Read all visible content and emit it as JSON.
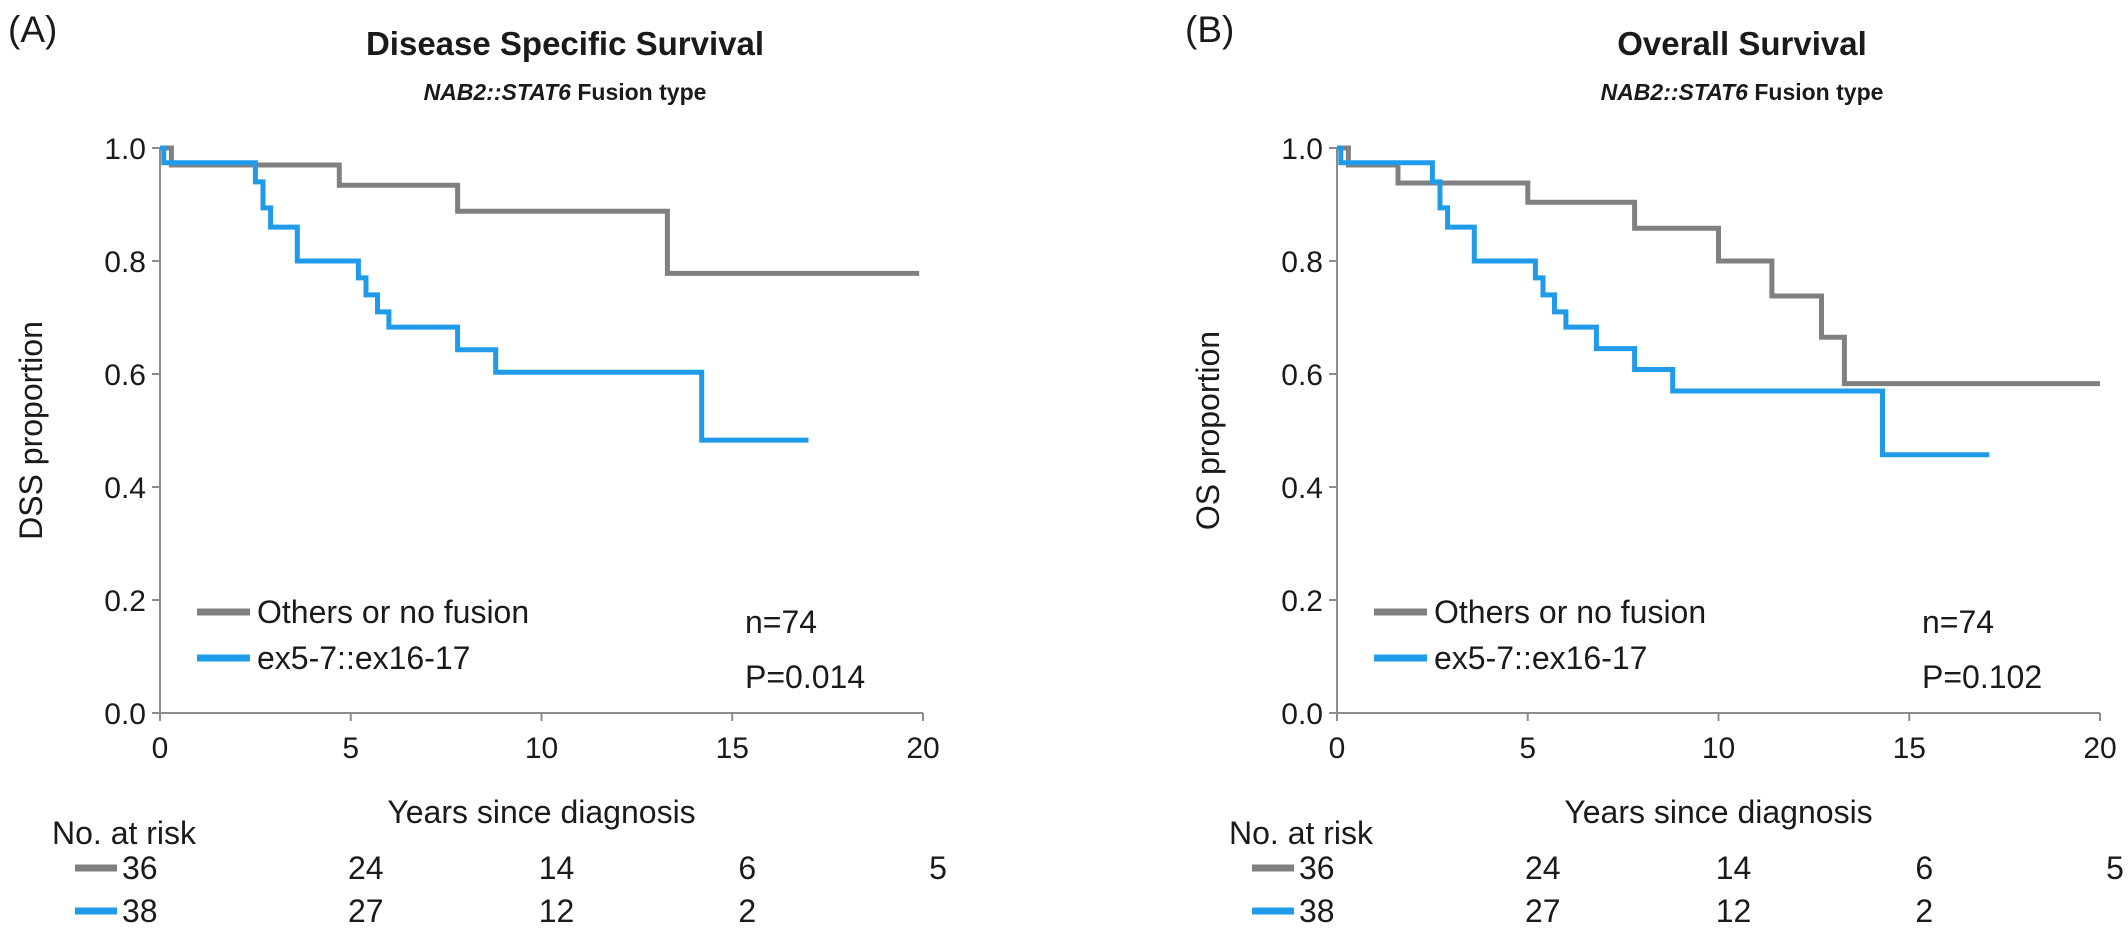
{
  "chart_data": [
    {
      "panel_label": "(A)",
      "type": "line",
      "step": true,
      "title": "Disease Specific Survival",
      "subtitle_italic": "NAB2::STAT6",
      "subtitle_rest": "Fusion type",
      "xlabel": "Years since diagnosis",
      "ylabel": "DSS proportion",
      "xlim": [
        0,
        20
      ],
      "ylim": [
        0,
        1
      ],
      "xticks": [
        "0",
        "5",
        "10",
        "15",
        "20"
      ],
      "yticks": [
        "0.0",
        "0.2",
        "0.4",
        "0.6",
        "0.8",
        "1.0"
      ],
      "grid": false,
      "legend_position": "bottom-left",
      "annotations": [
        "n=74",
        "P=0.014"
      ],
      "risk_title": "No. at risk",
      "series": [
        {
          "name": "Others or no fusion",
          "color": "#808080",
          "x": [
            0,
            0.3,
            0.3,
            4.7,
            4.7,
            7.8,
            7.8,
            13.3,
            13.3,
            19.9
          ],
          "y": [
            1.0,
            1.0,
            0.97,
            0.97,
            0.934,
            0.934,
            0.888,
            0.888,
            0.778,
            0.778
          ],
          "at_risk": [
            "36",
            "24",
            "14",
            "6",
            "5"
          ]
        },
        {
          "name": "ex5-7::ex16-17",
          "color": "#1f9bea",
          "x": [
            0,
            0.1,
            0.1,
            2.5,
            2.5,
            2.7,
            2.7,
            2.9,
            2.9,
            3.6,
            3.6,
            5.2,
            5.2,
            5.4,
            5.4,
            5.7,
            5.7,
            6.0,
            6.0,
            7.8,
            7.8,
            8.8,
            8.8,
            14.2,
            14.2,
            17.0
          ],
          "y": [
            1.0,
            1.0,
            0.974,
            0.974,
            0.94,
            0.94,
            0.894,
            0.894,
            0.86,
            0.86,
            0.8,
            0.8,
            0.77,
            0.77,
            0.74,
            0.74,
            0.71,
            0.71,
            0.683,
            0.683,
            0.643,
            0.643,
            0.603,
            0.603,
            0.483,
            0.483
          ],
          "at_risk": [
            "38",
            "27",
            "12",
            "2",
            ""
          ]
        }
      ]
    },
    {
      "panel_label": "(B)",
      "type": "line",
      "step": true,
      "title": "Overall Survival",
      "subtitle_italic": "NAB2::STAT6",
      "subtitle_rest": "Fusion type",
      "xlabel": "Years since diagnosis",
      "ylabel": "OS proportion",
      "xlim": [
        0,
        20
      ],
      "ylim": [
        0,
        1
      ],
      "xticks": [
        "0",
        "5",
        "10",
        "15",
        "20"
      ],
      "yticks": [
        "0.0",
        "0.2",
        "0.4",
        "0.6",
        "0.8",
        "1.0"
      ],
      "grid": false,
      "legend_position": "bottom-left",
      "annotations": [
        "n=74",
        "P=0.102"
      ],
      "risk_title": "No. at risk",
      "series": [
        {
          "name": "Others or no fusion",
          "color": "#808080",
          "x": [
            0,
            0.3,
            0.3,
            1.6,
            1.6,
            5.0,
            5.0,
            7.8,
            7.8,
            10.0,
            10.0,
            11.4,
            11.4,
            12.7,
            12.7,
            13.3,
            13.3,
            20.0
          ],
          "y": [
            1.0,
            1.0,
            0.97,
            0.97,
            0.938,
            0.938,
            0.904,
            0.904,
            0.858,
            0.858,
            0.8,
            0.8,
            0.738,
            0.738,
            0.665,
            0.665,
            0.583,
            0.583
          ],
          "at_risk": [
            "36",
            "24",
            "14",
            "6",
            "5"
          ]
        },
        {
          "name": "ex5-7::ex16-17",
          "color": "#1f9bea",
          "x": [
            0,
            0.1,
            0.1,
            2.5,
            2.5,
            2.7,
            2.7,
            2.9,
            2.9,
            3.6,
            3.6,
            5.2,
            5.2,
            5.4,
            5.4,
            5.7,
            5.7,
            6.0,
            6.0,
            6.8,
            6.8,
            7.8,
            7.8,
            8.8,
            8.8,
            14.3,
            14.3,
            17.1
          ],
          "y": [
            1.0,
            1.0,
            0.974,
            0.974,
            0.94,
            0.94,
            0.894,
            0.894,
            0.86,
            0.86,
            0.8,
            0.8,
            0.77,
            0.77,
            0.74,
            0.74,
            0.71,
            0.71,
            0.683,
            0.683,
            0.645,
            0.645,
            0.608,
            0.608,
            0.57,
            0.57,
            0.457,
            0.457
          ],
          "at_risk": [
            "38",
            "27",
            "12",
            "2",
            ""
          ]
        }
      ]
    }
  ]
}
